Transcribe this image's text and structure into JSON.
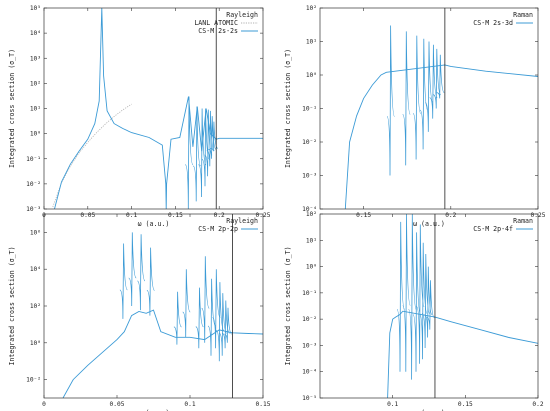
{
  "chart_data": [
    {
      "type": "line",
      "yscale": "log",
      "xlabel": "ω (a.u.)",
      "ylabel": "Integrated cross section (σ_T)",
      "xlim": [
        0,
        0.25
      ],
      "ylim": [
        0.001,
        100000
      ],
      "xticks": [
        "0",
        "0.05",
        "0.1",
        "0.15",
        "0.2",
        "0.25"
      ],
      "yticks": [
        "10⁻³",
        "10⁻²",
        "10⁻¹",
        "10⁰",
        "10¹",
        "10²",
        "10³",
        "10⁴",
        "10⁵"
      ],
      "ytick_exps": [
        -3,
        -2,
        -1,
        0,
        1,
        2,
        3,
        4,
        5
      ],
      "legend_position": "top-right",
      "legend_title": "Rayleigh",
      "threshold_x": 0.1966,
      "series": [
        {
          "name": "LANL ATOMIC",
          "style": "dotted",
          "color": "#b0b0b0",
          "x": [
            0.01,
            0.02,
            0.03,
            0.04,
            0.05,
            0.06,
            0.07,
            0.08,
            0.09,
            0.1
          ],
          "y": [
            0.0012,
            0.011,
            0.05,
            0.17,
            0.45,
            1.1,
            2.4,
            4.8,
            8.8,
            15
          ]
        },
        {
          "name": "CS-M 2s-2s",
          "style": "solid",
          "color": "#3c9bd6",
          "x": [
            0.012,
            0.02,
            0.03,
            0.04,
            0.05,
            0.058,
            0.063,
            0.066,
            0.068,
            0.072,
            0.08,
            0.09,
            0.1,
            0.12,
            0.135,
            0.139,
            0.1395,
            0.14,
            0.145,
            0.155,
            0.165,
            0.17,
            0.175,
            0.18,
            0.185,
            0.19,
            0.1966,
            0.2,
            0.22,
            0.25
          ],
          "y": [
            0.001,
            0.012,
            0.06,
            0.2,
            0.6,
            2.5,
            20,
            100000,
            200,
            8,
            2.5,
            1.6,
            1.1,
            0.7,
            0.35,
            0.01,
            0.001,
            0.01,
            0.6,
            0.7,
            30,
            0.3,
            12,
            0.2,
            10,
            1,
            0.6,
            0.65,
            0.65,
            0.65
          ]
        }
      ],
      "resonances": [
        {
          "x": 0.1655,
          "peak": 30,
          "dip": 0.001
        },
        {
          "x": 0.1745,
          "peak": 12,
          "dip": 0.002
        },
        {
          "x": 0.1805,
          "peak": 10,
          "dip": 0.003
        },
        {
          "x": 0.1845,
          "peak": 10,
          "dip": 0.008
        },
        {
          "x": 0.1875,
          "peak": 9,
          "dip": 0.02
        },
        {
          "x": 0.19,
          "peak": 8,
          "dip": 0.05
        },
        {
          "x": 0.192,
          "peak": 5,
          "dip": 0.1
        },
        {
          "x": 0.194,
          "peak": 3,
          "dip": 0.2
        }
      ]
    },
    {
      "type": "line",
      "yscale": "log",
      "xlabel": "ω (a.u.)",
      "ylabel": "Integrated cross section (σ_T)",
      "xlim": [
        0.125,
        0.25
      ],
      "ylim": [
        0.0001,
        100
      ],
      "xticks": [
        "0.15",
        "0.2",
        "0.25"
      ],
      "xtick_values": [
        0.15,
        0.2,
        0.25
      ],
      "yticks": [
        "10⁻⁴",
        "10⁻³",
        "10⁻²",
        "10⁻¹",
        "10⁰",
        "10¹",
        "10²"
      ],
      "ytick_exps": [
        -4,
        -3,
        -2,
        -1,
        0,
        1,
        2
      ],
      "legend_position": "top-right",
      "legend_title": "Raman",
      "threshold_x": 0.1966,
      "series": [
        {
          "name": "CS-M 2s-3d",
          "style": "solid",
          "color": "#3c9bd6",
          "x": [
            0.1395,
            0.142,
            0.146,
            0.15,
            0.155,
            0.16,
            0.163,
            0.1966,
            0.2,
            0.22,
            0.25
          ],
          "y": [
            0.0001,
            0.01,
            0.06,
            0.2,
            0.5,
            1.0,
            1.2,
            2.0,
            1.8,
            1.3,
            0.9
          ]
        },
        {
          "name": "",
          "style": "solid",
          "color": "#3c9bd6",
          "x": [],
          "y": []
        }
      ],
      "resonances": [
        {
          "x": 0.1655,
          "peak": 30,
          "dip": 0.001
        },
        {
          "x": 0.1745,
          "peak": 20,
          "dip": 0.002
        },
        {
          "x": 0.1805,
          "peak": 15,
          "dip": 0.003
        },
        {
          "x": 0.1845,
          "peak": 12,
          "dip": 0.006
        },
        {
          "x": 0.1875,
          "peak": 10,
          "dip": 0.02
        },
        {
          "x": 0.19,
          "peak": 8,
          "dip": 0.05
        },
        {
          "x": 0.192,
          "peak": 6,
          "dip": 0.1
        },
        {
          "x": 0.194,
          "peak": 4,
          "dip": 0.2
        }
      ]
    },
    {
      "type": "line",
      "yscale": "log",
      "xlabel": "ω (a.u.)",
      "ylabel": "Integrated cross section (σ_T)",
      "xlim": [
        0,
        0.15
      ],
      "ylim": [
        0.001,
        10000000
      ],
      "xticks": [
        "0",
        "0.05",
        "0.1",
        "0.15"
      ],
      "xtick_values": [
        0,
        0.05,
        0.1,
        0.15
      ],
      "yticks": [
        "10⁻²",
        "10⁰",
        "10²",
        "10⁴",
        "10⁶"
      ],
      "ytick_exps": [
        -2,
        0,
        2,
        4,
        6
      ],
      "legend_position": "top-right",
      "legend_title": "Rayleigh",
      "threshold_x": 0.1291,
      "series": [
        {
          "name": "CS-M 2p-2p",
          "style": "solid",
          "color": "#3c9bd6",
          "x": [
            0.013,
            0.02,
            0.03,
            0.04,
            0.05,
            0.055,
            0.06,
            0.065,
            0.07,
            0.075,
            0.08,
            0.09,
            0.1,
            0.11,
            0.12,
            0.1291,
            0.14,
            0.15
          ],
          "y": [
            0.001,
            0.01,
            0.06,
            0.3,
            1.5,
            4,
            30,
            50,
            40,
            60,
            4,
            2,
            2,
            1.5,
            5,
            3.5,
            3.2,
            3
          ]
        }
      ],
      "resonances": [
        {
          "x": 0.0545,
          "peak": 250000,
          "dip": 20
        },
        {
          "x": 0.0605,
          "peak": 1000000,
          "dip": 100
        },
        {
          "x": 0.0665,
          "peak": 800000,
          "dip": 60
        },
        {
          "x": 0.073,
          "peak": 150000,
          "dip": 30
        },
        {
          "x": 0.0915,
          "peak": 600,
          "dip": 0.8
        },
        {
          "x": 0.0975,
          "peak": 10000,
          "dip": 2
        },
        {
          "x": 0.1065,
          "peak": 1000,
          "dip": 0.5
        },
        {
          "x": 0.1105,
          "peak": 50000,
          "dip": 1
        },
        {
          "x": 0.1148,
          "peak": 3000,
          "dip": 0.2
        },
        {
          "x": 0.118,
          "peak": 10000,
          "dip": 0.5
        },
        {
          "x": 0.1205,
          "peak": 2000,
          "dip": 0.1
        },
        {
          "x": 0.1225,
          "peak": 500,
          "dip": 0.2
        },
        {
          "x": 0.1245,
          "peak": 200,
          "dip": 0.5
        },
        {
          "x": 0.126,
          "peak": 80,
          "dip": 1
        }
      ]
    },
    {
      "type": "line",
      "yscale": "log",
      "xlabel": "ω (a.u.)",
      "ylabel": "Integrated cross section (σ_T)",
      "xlim": [
        0.05,
        0.2
      ],
      "ylim": [
        1e-05,
        100
      ],
      "xticks": [
        "0.1",
        "0.15",
        "0.2"
      ],
      "xtick_values": [
        0.1,
        0.15,
        0.2
      ],
      "yticks": [
        "10⁻⁵",
        "10⁻⁴",
        "10⁻³",
        "10⁻²",
        "10⁻¹",
        "10⁰",
        "10¹",
        "10²"
      ],
      "ytick_exps": [
        -5,
        -4,
        -3,
        -2,
        -1,
        0,
        1,
        2
      ],
      "legend_position": "top-right",
      "legend_title": "Raman",
      "threshold_x": 0.1291,
      "series": [
        {
          "name": "CS-M 2p-4f",
          "style": "solid",
          "color": "#3c9bd6",
          "x": [
            0.0965,
            0.098,
            0.1,
            0.102,
            0.105,
            0.107,
            0.1291,
            0.14,
            0.16,
            0.18,
            0.2
          ],
          "y": [
            1e-05,
            0.003,
            0.01,
            0.012,
            0.015,
            0.02,
            0.012,
            0.008,
            0.004,
            0.002,
            0.0012
          ]
        }
      ],
      "resonances": [
        {
          "x": 0.1055,
          "peak": 50,
          "dip": 0.0001
        },
        {
          "x": 0.1095,
          "peak": 100,
          "dip": 0.0001
        },
        {
          "x": 0.1135,
          "peak": 100,
          "dip": 5e-05
        },
        {
          "x": 0.1165,
          "peak": 20,
          "dip": 0.0001
        },
        {
          "x": 0.119,
          "peak": 40,
          "dip": 0.0002
        },
        {
          "x": 0.121,
          "peak": 8,
          "dip": 0.0003
        },
        {
          "x": 0.1228,
          "peak": 3,
          "dip": 0.0008
        },
        {
          "x": 0.1245,
          "peak": 1,
          "dip": 0.002
        },
        {
          "x": 0.126,
          "peak": 0.3,
          "dip": 0.004
        }
      ]
    }
  ]
}
